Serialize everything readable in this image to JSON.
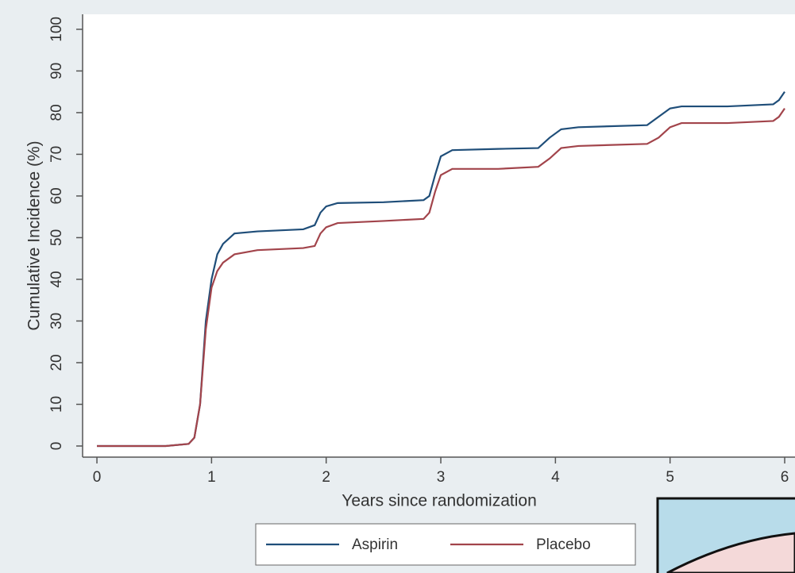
{
  "chart_data": {
    "type": "line",
    "x_label": "Years since randomization",
    "y_label": "Cumulative Incidence (%)",
    "x": [
      0,
      0.6,
      0.8,
      0.85,
      0.9,
      0.95,
      1.0,
      1.05,
      1.1,
      1.2,
      1.4,
      1.8,
      1.9,
      1.95,
      2.0,
      2.1,
      2.5,
      2.85,
      2.9,
      2.95,
      3.0,
      3.1,
      3.5,
      3.85,
      3.95,
      4.05,
      4.2,
      4.8,
      4.9,
      5.0,
      5.1,
      5.5,
      5.9,
      5.95,
      6.0
    ],
    "series": [
      {
        "name": "Aspirin",
        "color": "#1f4e79",
        "values": [
          0,
          0,
          0.5,
          2,
          10,
          30,
          40,
          46,
          48.5,
          51,
          51.5,
          52,
          53,
          56,
          57.5,
          58.3,
          58.5,
          59,
          60,
          65,
          69.5,
          71,
          71.3,
          71.5,
          74,
          76,
          76.5,
          77,
          79,
          81,
          81.5,
          81.5,
          82,
          83,
          85
        ]
      },
      {
        "name": "Placebo",
        "color": "#a2444b",
        "values": [
          0,
          0,
          0.5,
          2,
          10,
          28,
          38,
          42,
          44,
          46,
          47,
          47.5,
          48,
          51,
          52.5,
          53.5,
          54,
          54.5,
          56,
          61,
          65,
          66.5,
          66.5,
          67,
          69,
          71.5,
          72,
          72.5,
          74,
          76.5,
          77.5,
          77.5,
          78,
          79,
          81
        ]
      }
    ],
    "xlim": [
      -0.125,
      6.09
    ],
    "ylim": [
      -2.67,
      103.6
    ],
    "xticks": [
      0,
      1,
      2,
      3,
      4,
      5,
      6
    ],
    "yticks": [
      0,
      10,
      20,
      30,
      40,
      50,
      60,
      70,
      80,
      90,
      100
    ],
    "legend": "bottom"
  }
}
